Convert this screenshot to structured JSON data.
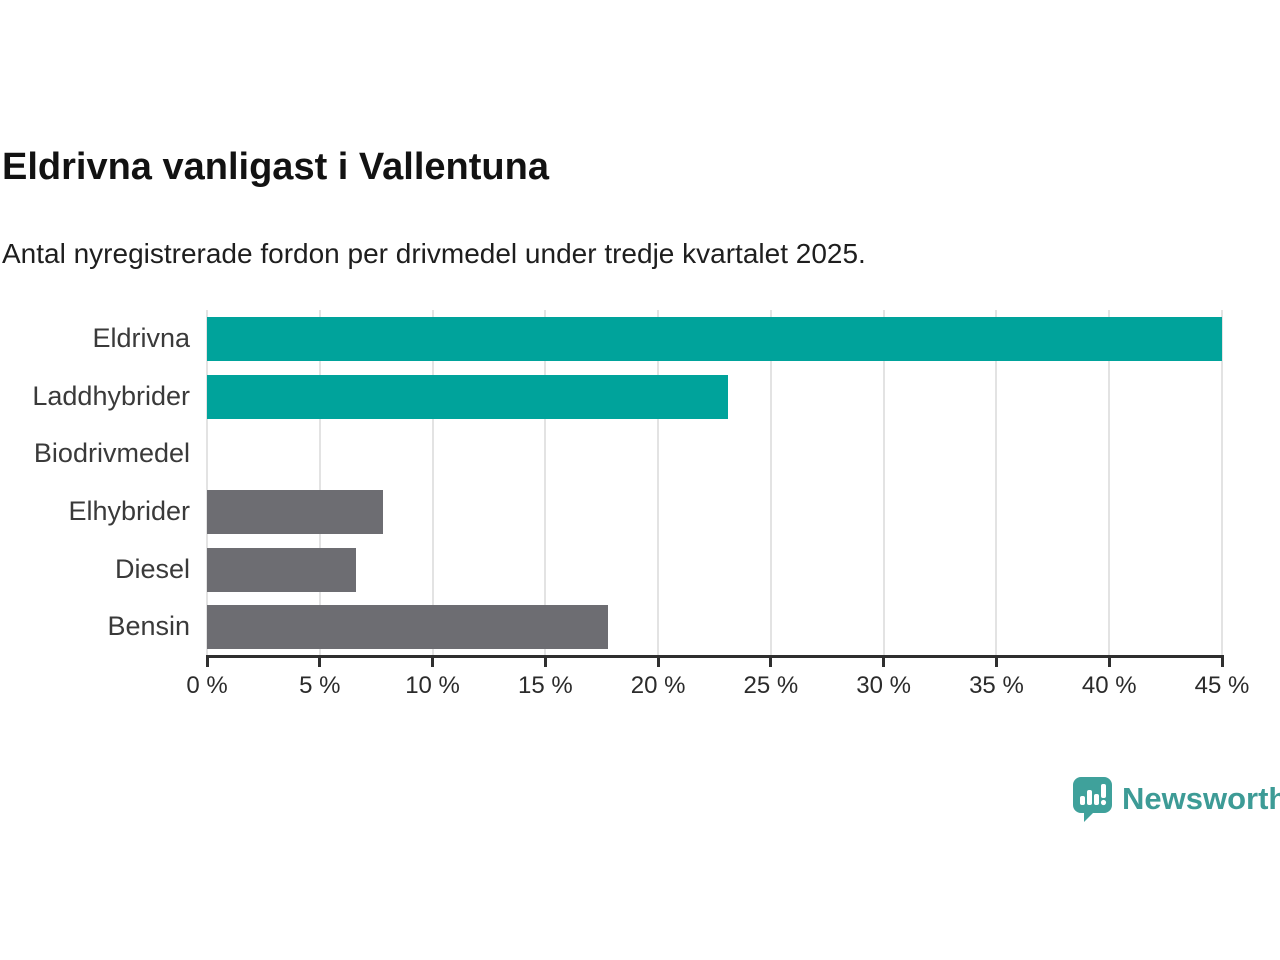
{
  "header": {
    "title": "Eldrivna vanligast i Vallentuna",
    "subtitle": "Antal nyregistrerade fordon per drivmedel under tredje kvartalet 2025."
  },
  "chart_data": {
    "type": "bar",
    "orientation": "horizontal",
    "title": "Eldrivna vanligast i Vallentuna",
    "subtitle": "Antal nyregistrerade fordon per drivmedel under tredje kvartalet 2025.",
    "categories": [
      "Eldrivna",
      "Laddhybrider",
      "Biodrivmedel",
      "Elhybrider",
      "Diesel",
      "Bensin"
    ],
    "values": [
      45.0,
      23.1,
      0,
      7.8,
      6.6,
      17.8
    ],
    "unit": "%",
    "xlabel": "",
    "ylabel": "",
    "xlim": [
      0,
      45
    ],
    "x_tick_values": [
      0,
      5,
      10,
      15,
      20,
      25,
      30,
      35,
      40,
      45
    ],
    "x_tick_labels": [
      "0 %",
      "5 %",
      "10 %",
      "15 %",
      "20 %",
      "25 %",
      "30 %",
      "35 %",
      "40 %",
      "45 %"
    ],
    "grid": "vertical-only",
    "legend": "none",
    "bar_colors": [
      "#00a39b",
      "#00a39b",
      "#6d6d72",
      "#6d6d72",
      "#6d6d72",
      "#6d6d72"
    ],
    "highlight_color": "#00a39b",
    "default_color": "#6d6d72",
    "gridline_color": "#e3e3e3",
    "axis_color": "#2f2f2f"
  },
  "branding": {
    "logo_icon": "newsworthy-bubble-chart-icon",
    "name": "Newsworthy",
    "color": "#3d9b96",
    "icon_color": "#3fa19b"
  }
}
